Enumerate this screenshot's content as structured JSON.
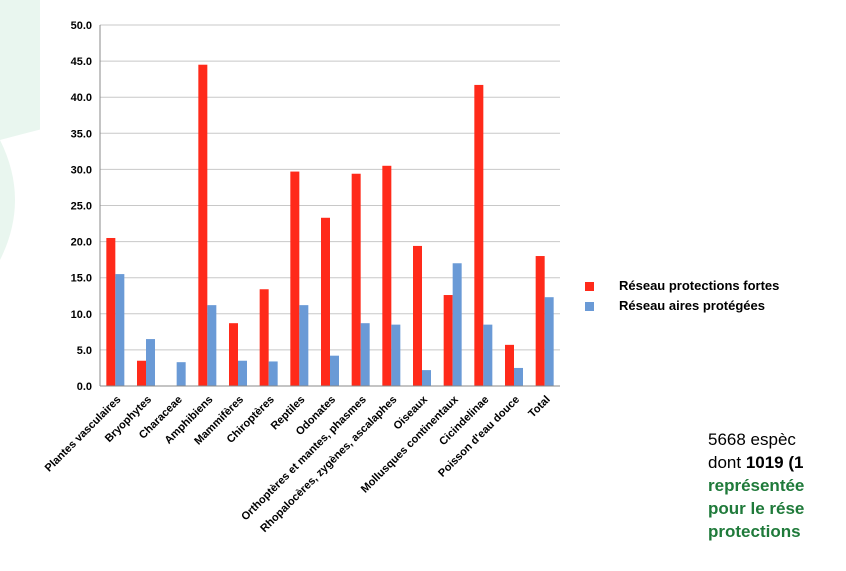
{
  "colors": {
    "series_strong": "#ff2a1a",
    "series_areas": "#6a9ad6",
    "background_tint": "#e9f6ef",
    "text_green": "#1f7a3a"
  },
  "legend": {
    "items": [
      {
        "label": "Réseau protections fortes"
      },
      {
        "label": "Réseau aires protégées"
      }
    ]
  },
  "side_text": {
    "line1": "5668 espèc",
    "line2_a": "dont ",
    "line2_b": "1019 (1",
    "line3": "représentée",
    "line4": "pour le rése",
    "line5": "protections"
  },
  "chart_data": {
    "type": "bar",
    "categories": [
      "Plantes vasculaires",
      "Bryophytes",
      "Characeae",
      "Amphibiens",
      "Mammifères",
      "Chiroptères",
      "Reptiles",
      "Odonates",
      "Orthoptères et mantes, phasmes",
      "Rhopalocères, zygènes, ascalaphes",
      "Oiseaux",
      "Mollusques continentaux",
      "Cicindelinae",
      "Poisson d'eau douce",
      "Total"
    ],
    "series": [
      {
        "name": "Réseau protections fortes",
        "values": [
          20.5,
          3.5,
          0,
          44.5,
          8.7,
          13.4,
          29.7,
          23.3,
          29.4,
          30.5,
          19.4,
          12.6,
          41.7,
          5.7,
          18.0
        ]
      },
      {
        "name": "Réseau aires protégées",
        "values": [
          15.5,
          6.5,
          3.3,
          11.2,
          3.5,
          3.4,
          11.2,
          4.2,
          8.7,
          8.5,
          2.2,
          17.0,
          8.5,
          2.5,
          12.3
        ]
      }
    ],
    "ylim": [
      0,
      50
    ],
    "yticks": [
      "0.0",
      "5.0",
      "10.0",
      "15.0",
      "20.0",
      "25.0",
      "30.0",
      "35.0",
      "40.0",
      "45.0",
      "50.0"
    ],
    "grid": true,
    "legend_position": "right"
  }
}
